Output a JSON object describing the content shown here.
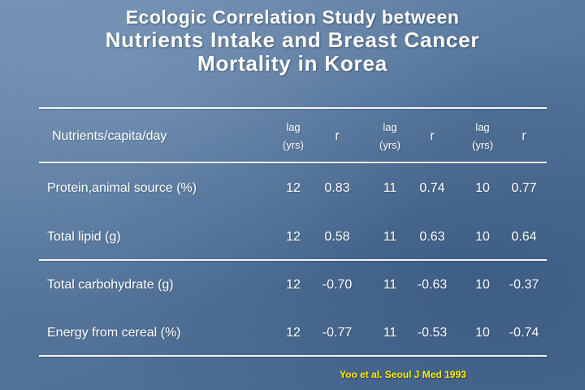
{
  "title": {
    "line1": "Ecologic Correlation Study between",
    "line2": "Nutrients Intake and Breast Cancer",
    "line3": "Mortality in Korea"
  },
  "table": {
    "header": {
      "label": "Nutrients/capita/day",
      "lag_top": "lag",
      "lag_bottom": "(yrs)",
      "r": "r"
    },
    "rows": [
      {
        "name": "Protein,animal source (%)",
        "values": [
          "12",
          "0.83",
          "11",
          "0.74",
          "10",
          "0.77"
        ]
      },
      {
        "name": "Total lipid (g)",
        "values": [
          "12",
          "0.58",
          "11",
          "0.63",
          "10",
          "0.64"
        ]
      },
      {
        "name": "Total carbohydrate (g)",
        "values": [
          "12",
          "-0.70",
          "11",
          "-0.63",
          "10",
          "-0.37"
        ]
      },
      {
        "name": "Energy from cereal (%)",
        "values": [
          "12",
          "-0.77",
          "11",
          "-0.53",
          "10",
          "-0.74"
        ]
      }
    ]
  },
  "citation": "Yoo et al. Seoul J Med 1993"
}
